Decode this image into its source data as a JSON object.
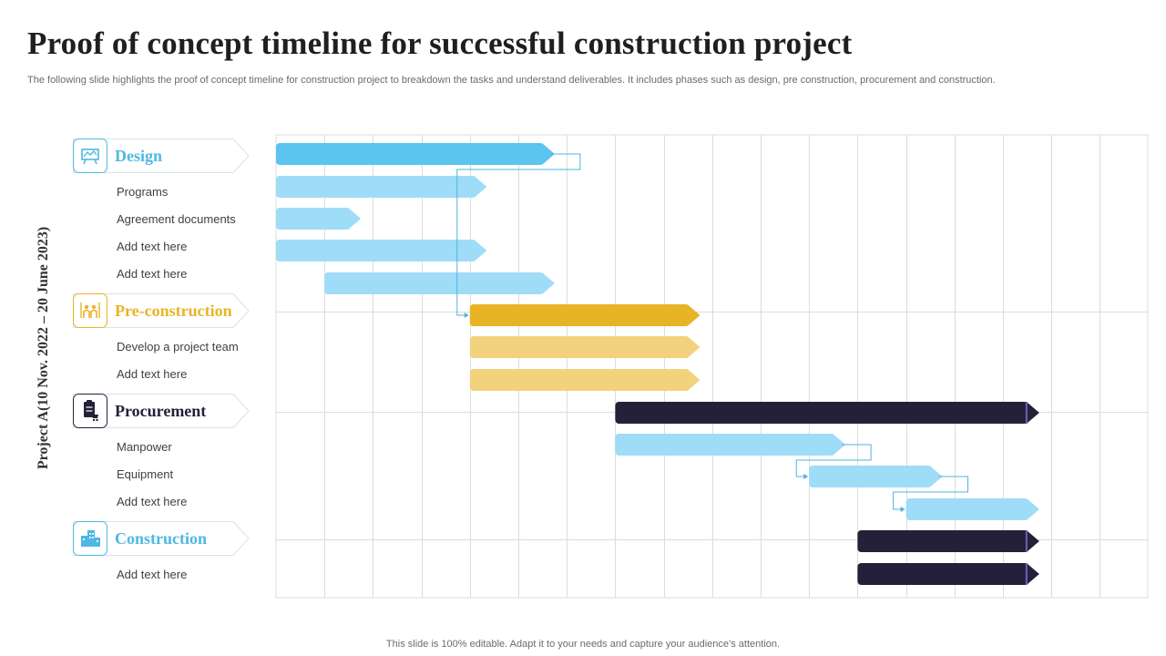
{
  "slide": {
    "title": "Proof of concept timeline for successful construction project",
    "subtitle": "The following slide highlights the proof of concept timeline for construction project to breakdown the tasks and understand deliverables. It includes phases such as design, pre construction, procurement and construction.",
    "footer": "This slide is 100% editable. Adapt it to your needs and capture your audience’s attention.",
    "axis_label": "Project A(10 Nov. 2022 – 20 June 2023)"
  },
  "colors": {
    "design": "#5bc4ef",
    "task_light": "#9fdcf7",
    "preconstruction": "#e8b426",
    "preconstruction_light": "#f2d27c",
    "procurement": "#24203a",
    "construction": "#5bc4ef",
    "grid": "#dcdcdc",
    "connector": "#4fb3e0"
  },
  "phases": [
    {
      "id": "design",
      "label": "Design",
      "icon": "design-board-icon",
      "color": "#4fb8e3",
      "tasks": [
        "Programs",
        "Agreement documents",
        "Add text here",
        "Add text here"
      ]
    },
    {
      "id": "preconstruction",
      "label": "Pre-construction",
      "icon": "team-tools-icon",
      "color": "#e8b426",
      "tasks": [
        "Develop  a project team",
        "Add text here"
      ]
    },
    {
      "id": "procurement",
      "label": "Procurement",
      "icon": "clipboard-cart-icon",
      "color": "#24203a",
      "tasks": [
        "Manpower",
        "Equipment",
        "Add text here"
      ]
    },
    {
      "id": "construction",
      "label": "Construction",
      "icon": "buildings-icon",
      "color": "#4fb8e3",
      "tasks": [
        "Add text here"
      ]
    }
  ],
  "chart_data": {
    "type": "gantt",
    "columns": 18,
    "bars": [
      {
        "name": "design-bar",
        "start": 0,
        "end": 5.75,
        "style": "design"
      },
      {
        "name": "programs-bar",
        "start": 0,
        "end": 4.35,
        "style": "light"
      },
      {
        "name": "agreement-documents-bar",
        "start": 0,
        "end": 1.75,
        "style": "light"
      },
      {
        "name": "design-task-3-bar",
        "start": 0,
        "end": 4.35,
        "style": "light"
      },
      {
        "name": "design-task-4-bar",
        "start": 1,
        "end": 5.75,
        "style": "light"
      },
      {
        "name": "preconstruction-bar",
        "start": 4,
        "end": 8.75,
        "style": "pre"
      },
      {
        "name": "develop-project-team-bar",
        "start": 4,
        "end": 8.75,
        "style": "pre-light"
      },
      {
        "name": "preconstruction-task-2-bar",
        "start": 4,
        "end": 8.75,
        "style": "pre-light"
      },
      {
        "name": "procurement-bar",
        "start": 7,
        "end": 15.75,
        "style": "dark"
      },
      {
        "name": "manpower-bar",
        "start": 7,
        "end": 11.75,
        "style": "light"
      },
      {
        "name": "equipment-bar",
        "start": 11,
        "end": 13.75,
        "style": "light"
      },
      {
        "name": "procurement-task-3-bar",
        "start": 13,
        "end": 15.75,
        "style": "light"
      },
      {
        "name": "construction-bar",
        "start": 12,
        "end": 15.75,
        "style": "dark"
      },
      {
        "name": "construction-task-1-bar",
        "start": 12,
        "end": 15.75,
        "style": "dark"
      }
    ],
    "dependencies": [
      {
        "from": 0,
        "to": 5
      },
      {
        "from": 9,
        "to": 10
      },
      {
        "from": 10,
        "to": 11
      }
    ]
  }
}
